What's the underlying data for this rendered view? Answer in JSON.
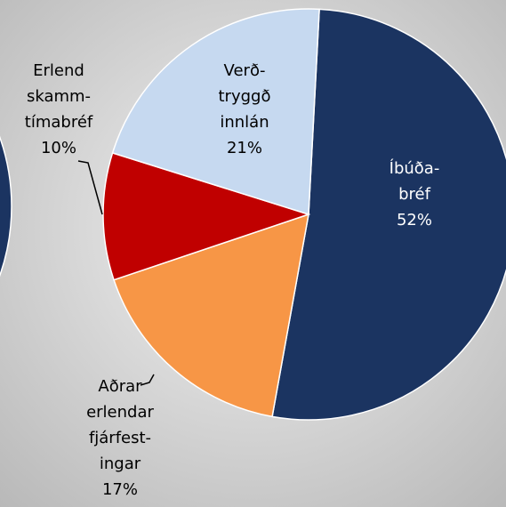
{
  "chart_data": {
    "type": "pie",
    "categories": [
      "Íbúða-\nbréf",
      "Aðrar\nerlendar\nfjárfest-\ningar",
      "Erlend\nskamm-\ntímabréf",
      "Verð-\ntryggð\ninnlán"
    ],
    "values": [
      52,
      17,
      10,
      21
    ],
    "value_labels": [
      "52%",
      "17%",
      "10%",
      "21%"
    ],
    "colors": [
      "#1b3461",
      "#f79646",
      "#c00000",
      "#c6d9f0"
    ]
  }
}
